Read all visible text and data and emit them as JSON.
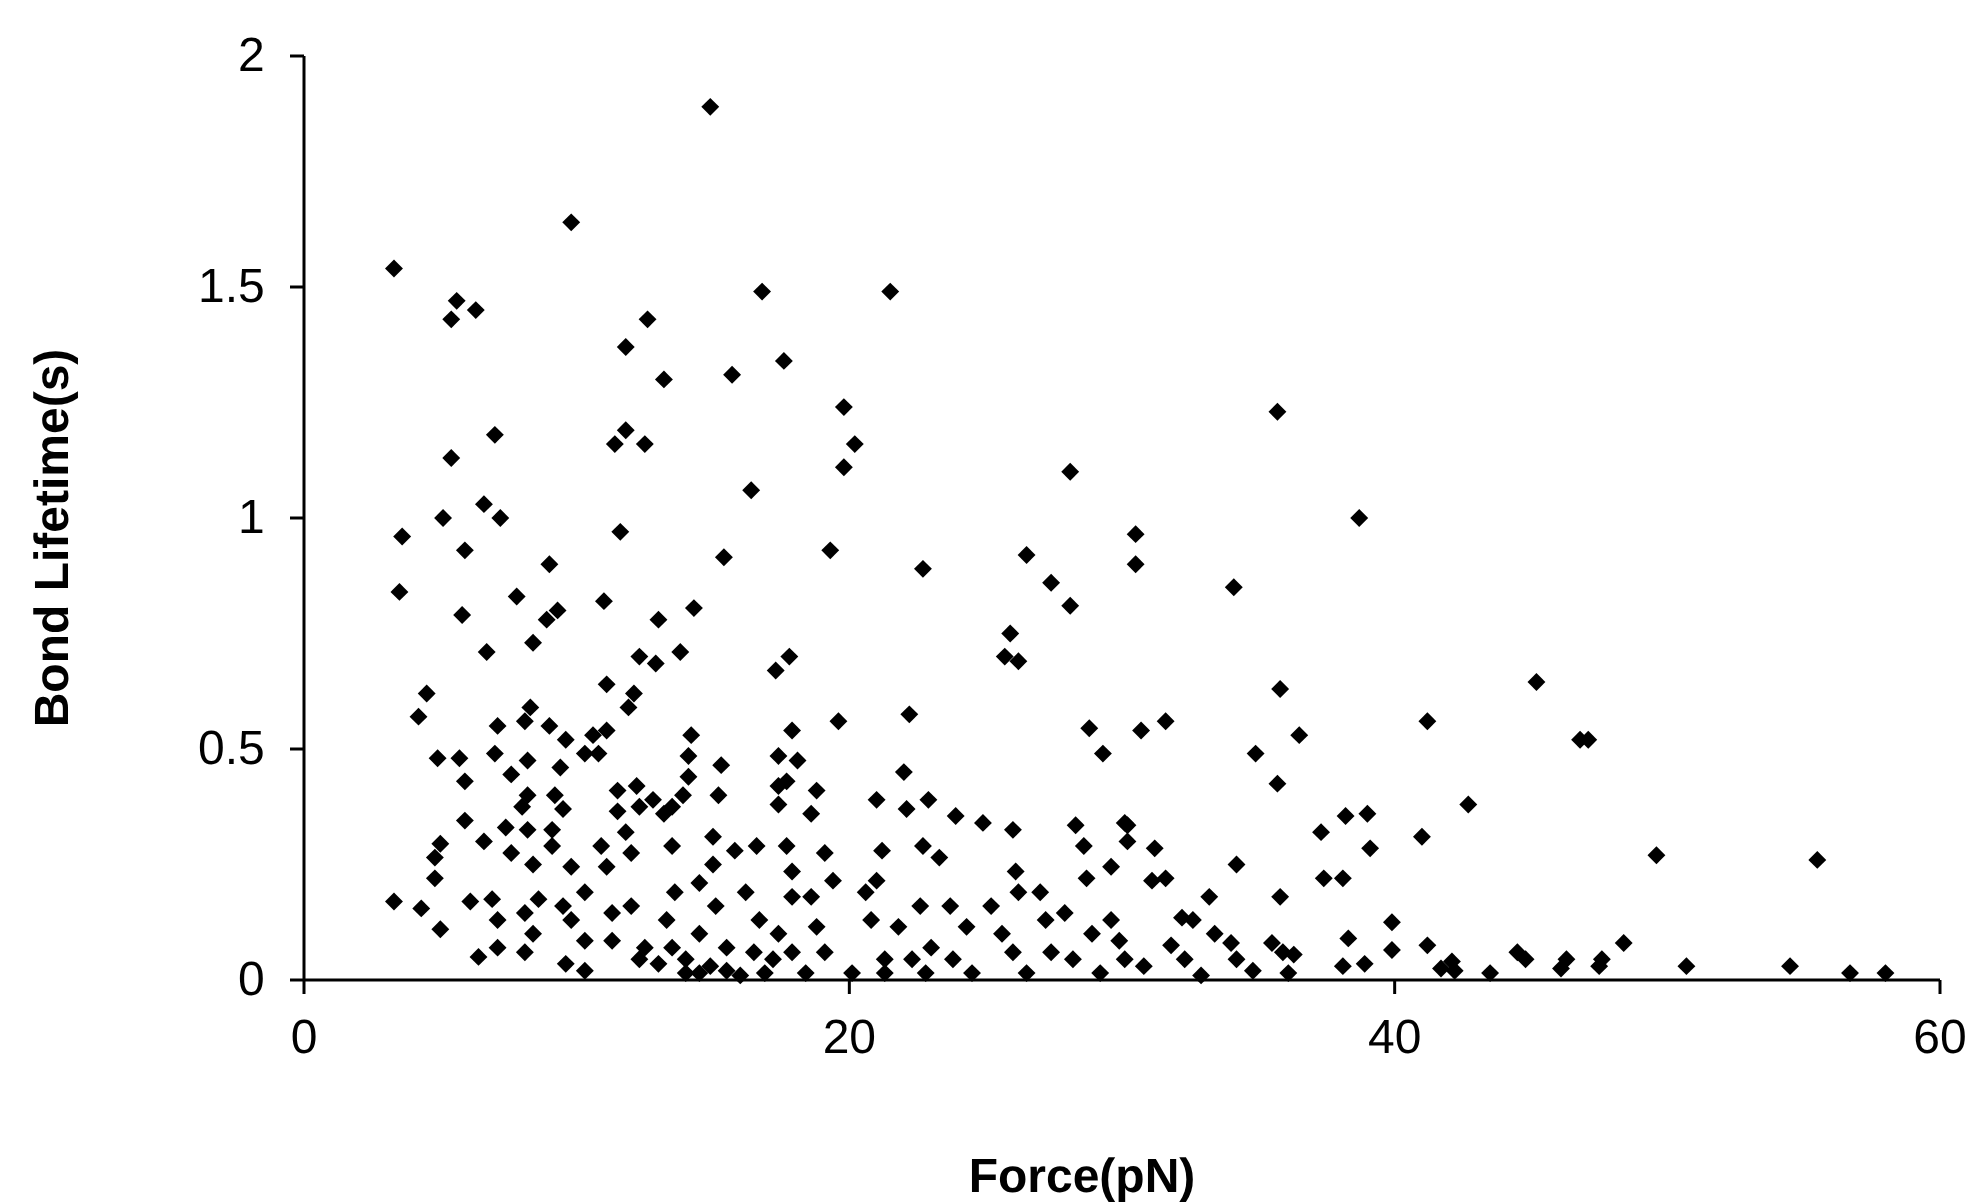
{
  "chart_data": {
    "type": "scatter",
    "xlabel": "Force(pN)",
    "ylabel": "Bond Lifetime(s)",
    "xlim": [
      0,
      60
    ],
    "ylim": [
      0,
      2
    ],
    "xticks": [
      0,
      20,
      40,
      60
    ],
    "yticks": [
      0,
      0.5,
      1,
      1.5,
      2
    ],
    "grid": false,
    "marker": "diamond",
    "series": [
      {
        "color": "#000000",
        "x": [
          14.9,
          9.8,
          3.3,
          5.6,
          6.3,
          5.4,
          16.8,
          21.5,
          12.6,
          11.8,
          13.2,
          15.7,
          17.6,
          19.8,
          20.2,
          19.8,
          28.1,
          5.4,
          7.0,
          11.4,
          11.8,
          12.5,
          16.4,
          5.1,
          6.6,
          7.2,
          11.6,
          3.6,
          35.7,
          38.7,
          30.5,
          30.5,
          34.1,
          35.8,
          45.2,
          30.7,
          31.6,
          34.9,
          36.5,
          35.7,
          41.2,
          46.8,
          47.1,
          42.7,
          30.2,
          30.2,
          31.2,
          31.1,
          31.6,
          34.2,
          37.3,
          38.2,
          39.0,
          39.1,
          37.4,
          38.1,
          41.0,
          35.8,
          33.2,
          49.6,
          55.5,
          39.9,
          38.3,
          39.9,
          41.2,
          48.4,
          44.5,
          44.8,
          46.3,
          47.6,
          50.7,
          54.5,
          56.7,
          58.0,
          43.5,
          42.1,
          42.2,
          41.7,
          38.1,
          38.9,
          46.1,
          47.5,
          32.2,
          32.6,
          33.4,
          34.0,
          34.2,
          32.9,
          35.5,
          35.9,
          36.3,
          36.1,
          34.8,
          31.8,
          32.3,
          30.8,
          3.5,
          5.9,
          9.0,
          7.8,
          5.8,
          6.7,
          8.4,
          8.9,
          9.3,
          11.0,
          13.0,
          14.3,
          15.4,
          19.3,
          22.7,
          26.5,
          27.4,
          28.1,
          25.9,
          25.7,
          26.2,
          12.3,
          12.9,
          13.8,
          17.3,
          17.8,
          11.1,
          11.9,
          12.1,
          4.5,
          4.2,
          19.6,
          22.2,
          28.8,
          29.3,
          4.9,
          5.7,
          7.1,
          8.3,
          8.1,
          9.0,
          9.6,
          10.6,
          11.1,
          14.2,
          17.9,
          7.0,
          7.6,
          8.2,
          9.4,
          10.3,
          10.8,
          14.1,
          15.3,
          17.4,
          18.1,
          5.9,
          14.1,
          17.4,
          17.7,
          22.0,
          8.2,
          9.2,
          11.5,
          12.2,
          12.8,
          13.5,
          13.9,
          15.2,
          18.8,
          21.0,
          22.9,
          17.4,
          22.1,
          8.0,
          9.5,
          5.9,
          6.6,
          7.4,
          8.2,
          9.1,
          11.5,
          12.3,
          13.2,
          18.6,
          23.9,
          24.9,
          26.0,
          28.3,
          30.1,
          5.0,
          4.8,
          7.6,
          8.4,
          9.1,
          9.8,
          10.9,
          11.8,
          12.0,
          13.5,
          15.0,
          15.8,
          16.6,
          17.7,
          19.1,
          21.2,
          22.7,
          23.3,
          28.6,
          29.6,
          28.7,
          4.8,
          11.1,
          15.0,
          17.9,
          26.1,
          14.5,
          3.3,
          4.3,
          5.0,
          6.1,
          6.9,
          7.1,
          8.1,
          8.4,
          7.1,
          8.1,
          6.4,
          8.6,
          9.5,
          9.8,
          10.3,
          9.6,
          10.3,
          10.3,
          11.3,
          12.0,
          11.3,
          12.5,
          12.3,
          13.0,
          13.3,
          13.6,
          13.5,
          14.0,
          14.5,
          15.1,
          14.5,
          14.9,
          15.5,
          16.0,
          16.2,
          16.7,
          16.5,
          17.2,
          17.4,
          17.9,
          17.9,
          18.6,
          18.8,
          19.1,
          19.4,
          20.1,
          20.6,
          21.0,
          20.8,
          21.3,
          21.8,
          22.6,
          22.3,
          23.0,
          23.7,
          24.3,
          23.8,
          24.5,
          25.2,
          25.6,
          26.2,
          27.0,
          26.0,
          26.5,
          27.2,
          27.9,
          27.4,
          28.2,
          28.9,
          29.9,
          29.2,
          30.1,
          29.6,
          14.0,
          15.5,
          16.9,
          18.4,
          21.3,
          22.8
        ],
        "values": [
          1.89,
          1.64,
          1.54,
          1.47,
          1.45,
          1.43,
          1.49,
          1.49,
          1.43,
          1.37,
          1.3,
          1.31,
          1.34,
          1.24,
          1.16,
          1.11,
          1.1,
          1.13,
          1.18,
          1.16,
          1.19,
          1.16,
          1.06,
          1.0,
          1.03,
          1.0,
          0.97,
          0.96,
          1.23,
          1.0,
          0.965,
          0.9,
          0.85,
          0.63,
          0.645,
          0.54,
          0.56,
          0.49,
          0.53,
          0.425,
          0.56,
          0.52,
          0.52,
          0.38,
          0.335,
          0.3,
          0.285,
          0.215,
          0.22,
          0.25,
          0.32,
          0.355,
          0.36,
          0.285,
          0.22,
          0.22,
          0.31,
          0.18,
          0.18,
          0.27,
          0.26,
          0.125,
          0.09,
          0.065,
          0.075,
          0.08,
          0.06,
          0.045,
          0.045,
          0.045,
          0.03,
          0.03,
          0.015,
          0.015,
          0.015,
          0.04,
          0.02,
          0.025,
          0.03,
          0.035,
          0.025,
          0.03,
          0.135,
          0.13,
          0.1,
          0.08,
          0.045,
          0.01,
          0.08,
          0.06,
          0.055,
          0.015,
          0.02,
          0.075,
          0.045,
          0.03,
          0.84,
          0.93,
          0.9,
          0.83,
          0.79,
          0.71,
          0.73,
          0.78,
          0.8,
          0.82,
          0.78,
          0.805,
          0.915,
          0.93,
          0.89,
          0.92,
          0.86,
          0.81,
          0.75,
          0.7,
          0.69,
          0.7,
          0.685,
          0.71,
          0.67,
          0.7,
          0.64,
          0.59,
          0.62,
          0.62,
          0.57,
          0.56,
          0.575,
          0.545,
          0.49,
          0.48,
          0.48,
          0.55,
          0.59,
          0.56,
          0.55,
          0.52,
          0.53,
          0.54,
          0.53,
          0.54,
          0.49,
          0.445,
          0.475,
          0.46,
          0.49,
          0.49,
          0.485,
          0.465,
          0.485,
          0.475,
          0.43,
          0.44,
          0.42,
          0.43,
          0.45,
          0.4,
          0.4,
          0.41,
          0.42,
          0.39,
          0.375,
          0.4,
          0.4,
          0.41,
          0.39,
          0.39,
          0.38,
          0.37,
          0.375,
          0.37,
          0.345,
          0.3,
          0.33,
          0.325,
          0.325,
          0.365,
          0.375,
          0.36,
          0.36,
          0.355,
          0.34,
          0.325,
          0.335,
          0.34,
          0.295,
          0.265,
          0.275,
          0.25,
          0.29,
          0.245,
          0.29,
          0.32,
          0.275,
          0.29,
          0.31,
          0.28,
          0.29,
          0.29,
          0.275,
          0.28,
          0.29,
          0.265,
          0.29,
          0.245,
          0.22,
          0.22,
          0.245,
          0.25,
          0.235,
          0.235,
          0.21,
          0.17,
          0.155,
          0.11,
          0.17,
          0.175,
          0.13,
          0.145,
          0.1,
          0.07,
          0.06,
          0.05,
          0.175,
          0.16,
          0.13,
          0.085,
          0.035,
          0.02,
          0.19,
          0.145,
          0.16,
          0.085,
          0.07,
          0.045,
          0.035,
          0.13,
          0.19,
          0.07,
          0.045,
          0.1,
          0.16,
          0.015,
          0.03,
          0.07,
          0.01,
          0.19,
          0.13,
          0.06,
          0.045,
          0.1,
          0.06,
          0.18,
          0.18,
          0.115,
          0.06,
          0.215,
          0.015,
          0.19,
          0.215,
          0.13,
          0.045,
          0.115,
          0.16,
          0.045,
          0.07,
          0.16,
          0.115,
          0.045,
          0.015,
          0.16,
          0.1,
          0.19,
          0.19,
          0.06,
          0.015,
          0.13,
          0.145,
          0.06,
          0.045,
          0.1,
          0.085,
          0.015,
          0.045,
          0.13,
          0.015,
          0.02,
          0.015,
          0.015,
          0.015,
          0.015
        ]
      }
    ]
  }
}
